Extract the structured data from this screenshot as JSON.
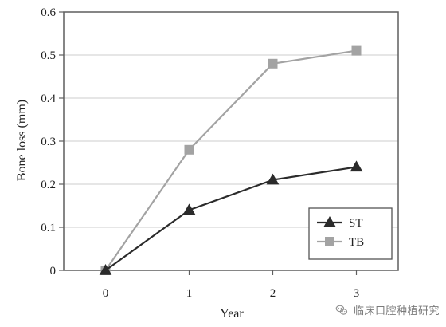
{
  "chart_data": {
    "type": "line",
    "title": "",
    "xlabel": "Year",
    "ylabel": "Bone loss (mm)",
    "x": [
      0,
      1,
      2,
      3
    ],
    "x_ticks": [
      "0",
      "1",
      "2",
      "3"
    ],
    "y_ticks": [
      "0",
      "0.1",
      "0.2",
      "0.3",
      "0.4",
      "0.5",
      "0.6"
    ],
    "xlim": [
      -0.5,
      3.5
    ],
    "ylim": [
      0,
      0.6
    ],
    "grid": "horizontal",
    "legend_position": "bottom-right",
    "series": [
      {
        "name": "ST",
        "values": [
          0,
          0.14,
          0.21,
          0.24
        ],
        "marker": "triangle",
        "color": "#2b2b2b"
      },
      {
        "name": "TB",
        "values": [
          0,
          0.28,
          0.48,
          0.51
        ],
        "marker": "square",
        "color": "#a3a3a3"
      }
    ]
  },
  "watermark": {
    "text": "临床口腔种植研究",
    "icon": "wechat-icon"
  }
}
